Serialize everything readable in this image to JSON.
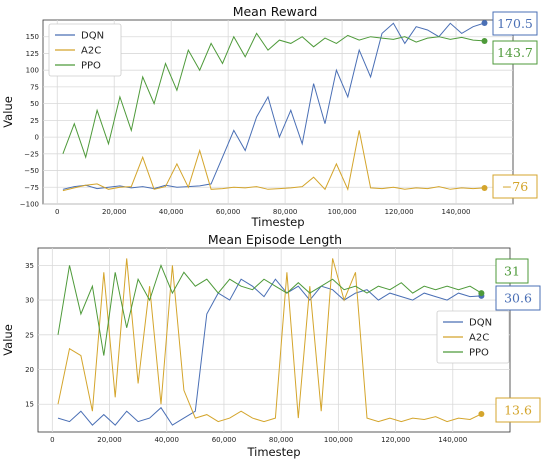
{
  "colors": {
    "DQN": "#4a6fb5",
    "A2C": "#d4a52c",
    "PPO": "#4e9a3a"
  },
  "chart_data": [
    {
      "type": "line",
      "title": "Mean Reward",
      "xlabel": "Timestep",
      "ylabel": "Value",
      "xlim": [
        -5000,
        160000
      ],
      "ylim": [
        -100,
        175
      ],
      "xticks": [
        0,
        20000,
        40000,
        60000,
        80000,
        100000,
        120000,
        140000
      ],
      "xtick_labels": [
        "0",
        "20,000",
        "40,000",
        "60,000",
        "80,000",
        "100,000",
        "120,000",
        "140,000"
      ],
      "yticks": [
        -100,
        -75,
        -50,
        -25,
        0,
        25,
        50,
        75,
        100,
        125,
        150
      ],
      "ytick_labels": [
        "−100",
        "−75",
        "−50",
        "−25",
        "0",
        "25",
        "50",
        "75",
        "100",
        "125",
        "150"
      ],
      "grid": true,
      "legend": "top-left",
      "series": [
        {
          "name": "DQN",
          "x": [
            2000,
            6000,
            10000,
            14000,
            18000,
            22000,
            26000,
            30000,
            34000,
            38000,
            42000,
            46000,
            50000,
            54000,
            58000,
            62000,
            66000,
            70000,
            74000,
            78000,
            82000,
            86000,
            90000,
            94000,
            98000,
            102000,
            106000,
            110000,
            114000,
            118000,
            122000,
            126000,
            130000,
            134000,
            138000,
            142000,
            146000,
            150000
          ],
          "values": [
            -78,
            -74,
            -72,
            -77,
            -75,
            -73,
            -76,
            -74,
            -77,
            -72,
            -75,
            -74,
            -73,
            -70,
            -30,
            10,
            -20,
            30,
            60,
            0,
            40,
            -10,
            80,
            20,
            100,
            60,
            130,
            90,
            155,
            170,
            140,
            165,
            160,
            150,
            170,
            155,
            165,
            170.5
          ],
          "end_label": "170.5"
        },
        {
          "name": "A2C",
          "x": [
            2000,
            6000,
            10000,
            14000,
            18000,
            22000,
            26000,
            30000,
            34000,
            38000,
            42000,
            46000,
            50000,
            54000,
            58000,
            62000,
            66000,
            70000,
            74000,
            78000,
            82000,
            86000,
            90000,
            94000,
            98000,
            102000,
            106000,
            110000,
            114000,
            118000,
            122000,
            126000,
            130000,
            134000,
            138000,
            142000,
            146000,
            150000
          ],
          "values": [
            -80,
            -76,
            -72,
            -70,
            -78,
            -75,
            -74,
            -30,
            -78,
            -74,
            -40,
            -75,
            -20,
            -78,
            -77,
            -75,
            -76,
            -74,
            -78,
            -77,
            -76,
            -74,
            -60,
            -78,
            -40,
            -78,
            10,
            -76,
            -77,
            -75,
            -78,
            -76,
            -77,
            -74,
            -78,
            -76,
            -77,
            -76
          ],
          "end_label": "−76"
        },
        {
          "name": "PPO",
          "x": [
            2000,
            6000,
            10000,
            14000,
            18000,
            22000,
            26000,
            30000,
            34000,
            38000,
            42000,
            46000,
            50000,
            54000,
            58000,
            62000,
            66000,
            70000,
            74000,
            78000,
            82000,
            86000,
            90000,
            94000,
            98000,
            102000,
            106000,
            110000,
            114000,
            118000,
            122000,
            126000,
            130000,
            134000,
            138000,
            142000,
            146000,
            150000
          ],
          "values": [
            -25,
            20,
            -30,
            40,
            -10,
            60,
            10,
            90,
            50,
            110,
            70,
            130,
            100,
            140,
            110,
            150,
            120,
            155,
            130,
            145,
            140,
            150,
            135,
            148,
            140,
            152,
            145,
            150,
            148,
            146,
            150,
            142,
            148,
            150,
            146,
            149,
            145,
            143.7
          ],
          "end_label": "143.7"
        }
      ]
    },
    {
      "type": "line",
      "title": "Mean Episode Length",
      "xlabel": "Timestep",
      "ylabel": "Value",
      "xlim": [
        -5000,
        160000
      ],
      "ylim": [
        11,
        37.5
      ],
      "xticks": [
        0,
        20000,
        40000,
        60000,
        80000,
        100000,
        120000,
        140000
      ],
      "xtick_labels": [
        "0",
        "20,000",
        "40,000",
        "60,000",
        "80,000",
        "100,000",
        "120,000",
        "140,000"
      ],
      "yticks": [
        15,
        20,
        25,
        30,
        35
      ],
      "ytick_labels": [
        "15",
        "20",
        "25",
        "30",
        "35"
      ],
      "grid": true,
      "legend": "center-right",
      "series": [
        {
          "name": "DQN",
          "x": [
            2000,
            6000,
            10000,
            14000,
            18000,
            22000,
            26000,
            30000,
            34000,
            38000,
            42000,
            46000,
            50000,
            54000,
            58000,
            62000,
            66000,
            70000,
            74000,
            78000,
            82000,
            86000,
            90000,
            94000,
            98000,
            102000,
            106000,
            110000,
            114000,
            118000,
            122000,
            126000,
            130000,
            134000,
            138000,
            142000,
            146000,
            150000
          ],
          "values": [
            13,
            12.5,
            14,
            12,
            13.5,
            12,
            14,
            12.5,
            13,
            14.5,
            12,
            13,
            14,
            28,
            31,
            30,
            33,
            32,
            30.5,
            33,
            31,
            32,
            30,
            32,
            31.5,
            30,
            31,
            31.5,
            30,
            31,
            30.5,
            30,
            31,
            30.5,
            30,
            31,
            30.5,
            30.6
          ],
          "end_label": "30.6"
        },
        {
          "name": "A2C",
          "x": [
            2000,
            6000,
            10000,
            14000,
            18000,
            22000,
            26000,
            30000,
            34000,
            38000,
            42000,
            46000,
            50000,
            54000,
            58000,
            62000,
            66000,
            70000,
            74000,
            78000,
            82000,
            86000,
            90000,
            94000,
            98000,
            102000,
            106000,
            110000,
            114000,
            118000,
            122000,
            126000,
            130000,
            134000,
            138000,
            142000,
            146000,
            150000
          ],
          "values": [
            15,
            23,
            22,
            14,
            34,
            16,
            36,
            18,
            32,
            15,
            35,
            17,
            13,
            13.5,
            12.5,
            13,
            14,
            13,
            12.5,
            13,
            34,
            13,
            32,
            14,
            36,
            30,
            34,
            13,
            12.5,
            13,
            12.5,
            13,
            12.8,
            13.2,
            12.5,
            13,
            12.8,
            13.6
          ],
          "end_label": "13.6"
        },
        {
          "name": "PPO",
          "x": [
            2000,
            6000,
            10000,
            14000,
            18000,
            22000,
            26000,
            30000,
            34000,
            38000,
            42000,
            46000,
            50000,
            54000,
            58000,
            62000,
            66000,
            70000,
            74000,
            78000,
            82000,
            86000,
            90000,
            94000,
            98000,
            102000,
            106000,
            110000,
            114000,
            118000,
            122000,
            126000,
            130000,
            134000,
            138000,
            142000,
            146000,
            150000
          ],
          "values": [
            25,
            35,
            28,
            32,
            22,
            34,
            26,
            33,
            30,
            35,
            31,
            34,
            32,
            33,
            31,
            33,
            32,
            31.5,
            33,
            32,
            31,
            32.5,
            31,
            32,
            33,
            31.5,
            32,
            31,
            32,
            31.5,
            32.5,
            31,
            32,
            31.5,
            32,
            31.5,
            32,
            31
          ],
          "end_label": "31"
        }
      ]
    }
  ]
}
